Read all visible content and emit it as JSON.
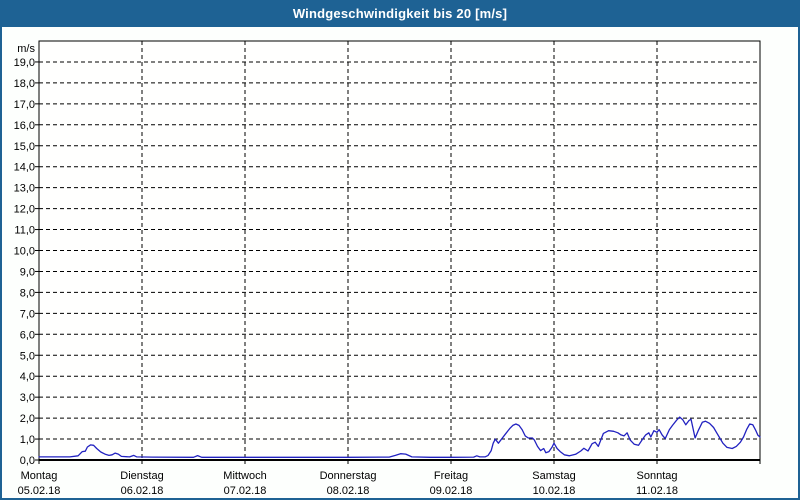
{
  "window": {
    "title": "Windgeschwindigkeit bis 20 [m/s]"
  },
  "colors": {
    "titlebar": "#1e6294",
    "window_border": "#1e6294",
    "background": "#fdfffd",
    "plot_background": "#fffffe",
    "grid": "#000000",
    "text": "#000000",
    "line": "#2222c0"
  },
  "chart_data": {
    "type": "line",
    "title": "Windgeschwindigkeit bis 20 [m/s]",
    "ylabel": "m/s",
    "xlabel": "",
    "ylim": [
      0,
      20
    ],
    "y_tick_step": 1,
    "grid": "dashed",
    "legend": "none",
    "y_tick_labels": [
      "0,0",
      "1,0",
      "2,0",
      "3,0",
      "4,0",
      "5,0",
      "6,0",
      "7,0",
      "8,0",
      "9,0",
      "10,0",
      "11,0",
      "12,0",
      "13,0",
      "14,0",
      "15,0",
      "16,0",
      "17,0",
      "18,0",
      "19,0"
    ],
    "x_categories": [
      {
        "day": "Montag",
        "date": "05.02.18"
      },
      {
        "day": "Dienstag",
        "date": "06.02.18"
      },
      {
        "day": "Mittwoch",
        "date": "07.02.18"
      },
      {
        "day": "Donnerstag",
        "date": "08.02.18"
      },
      {
        "day": "Freitag",
        "date": "09.02.18"
      },
      {
        "day": "Samstag",
        "date": "10.02.18"
      },
      {
        "day": "Sonntag",
        "date": "11.02.18"
      }
    ],
    "series": [
      {
        "name": "Windgeschwindigkeit",
        "unit": "m/s",
        "color": "#2222c0",
        "points": [
          [
            0.0,
            0.15
          ],
          [
            0.3,
            0.15
          ],
          [
            0.38,
            0.2
          ],
          [
            0.42,
            0.4
          ],
          [
            0.45,
            0.42
          ],
          [
            0.47,
            0.62
          ],
          [
            0.5,
            0.72
          ],
          [
            0.53,
            0.7
          ],
          [
            0.56,
            0.55
          ],
          [
            0.6,
            0.38
          ],
          [
            0.64,
            0.28
          ],
          [
            0.68,
            0.22
          ],
          [
            0.71,
            0.25
          ],
          [
            0.74,
            0.33
          ],
          [
            0.77,
            0.28
          ],
          [
            0.8,
            0.17
          ],
          [
            0.88,
            0.15
          ],
          [
            0.92,
            0.22
          ],
          [
            0.95,
            0.15
          ],
          [
            1.1,
            0.14
          ],
          [
            1.5,
            0.13
          ],
          [
            1.54,
            0.21
          ],
          [
            1.58,
            0.13
          ],
          [
            2.0,
            0.13
          ],
          [
            2.5,
            0.13
          ],
          [
            3.0,
            0.13
          ],
          [
            3.4,
            0.14
          ],
          [
            3.46,
            0.22
          ],
          [
            3.51,
            0.3
          ],
          [
            3.56,
            0.28
          ],
          [
            3.62,
            0.15
          ],
          [
            3.8,
            0.13
          ],
          [
            4.0,
            0.13
          ],
          [
            4.22,
            0.14
          ],
          [
            4.25,
            0.2
          ],
          [
            4.28,
            0.15
          ],
          [
            4.33,
            0.15
          ],
          [
            4.36,
            0.22
          ],
          [
            4.39,
            0.45
          ],
          [
            4.41,
            0.8
          ],
          [
            4.43,
            1.0
          ],
          [
            4.46,
            0.8
          ],
          [
            4.49,
            1.0
          ],
          [
            4.53,
            1.25
          ],
          [
            4.57,
            1.5
          ],
          [
            4.6,
            1.65
          ],
          [
            4.63,
            1.72
          ],
          [
            4.66,
            1.65
          ],
          [
            4.69,
            1.45
          ],
          [
            4.72,
            1.15
          ],
          [
            4.75,
            1.05
          ],
          [
            4.79,
            1.05
          ],
          [
            4.81,
            0.95
          ],
          [
            4.84,
            0.65
          ],
          [
            4.87,
            0.45
          ],
          [
            4.9,
            0.55
          ],
          [
            4.92,
            0.35
          ],
          [
            4.95,
            0.4
          ],
          [
            4.98,
            0.6
          ],
          [
            5.0,
            0.8
          ],
          [
            5.03,
            0.55
          ],
          [
            5.06,
            0.4
          ],
          [
            5.1,
            0.25
          ],
          [
            5.15,
            0.2
          ],
          [
            5.21,
            0.27
          ],
          [
            5.26,
            0.43
          ],
          [
            5.29,
            0.56
          ],
          [
            5.33,
            0.43
          ],
          [
            5.37,
            0.78
          ],
          [
            5.4,
            0.85
          ],
          [
            5.43,
            0.65
          ],
          [
            5.48,
            1.27
          ],
          [
            5.53,
            1.4
          ],
          [
            5.58,
            1.37
          ],
          [
            5.62,
            1.3
          ],
          [
            5.65,
            1.2
          ],
          [
            5.68,
            1.15
          ],
          [
            5.71,
            1.3
          ],
          [
            5.74,
            0.95
          ],
          [
            5.78,
            0.75
          ],
          [
            5.82,
            0.7
          ],
          [
            5.86,
            1.0
          ],
          [
            5.89,
            1.2
          ],
          [
            5.92,
            1.3
          ],
          [
            5.94,
            1.1
          ],
          [
            5.97,
            1.4
          ],
          [
            6.0,
            1.32
          ],
          [
            6.02,
            1.45
          ],
          [
            6.05,
            1.2
          ],
          [
            6.08,
            1.02
          ],
          [
            6.12,
            1.45
          ],
          [
            6.15,
            1.65
          ],
          [
            6.19,
            1.9
          ],
          [
            6.22,
            2.05
          ],
          [
            6.25,
            1.92
          ],
          [
            6.28,
            1.68
          ],
          [
            6.31,
            1.88
          ],
          [
            6.33,
            1.95
          ],
          [
            6.37,
            1.05
          ],
          [
            6.4,
            1.4
          ],
          [
            6.44,
            1.8
          ],
          [
            6.47,
            1.85
          ],
          [
            6.51,
            1.75
          ],
          [
            6.55,
            1.55
          ],
          [
            6.58,
            1.3
          ],
          [
            6.61,
            1.05
          ],
          [
            6.64,
            0.8
          ],
          [
            6.68,
            0.6
          ],
          [
            6.73,
            0.55
          ],
          [
            6.77,
            0.65
          ],
          [
            6.81,
            0.85
          ],
          [
            6.84,
            1.1
          ],
          [
            6.87,
            1.45
          ],
          [
            6.9,
            1.72
          ],
          [
            6.93,
            1.68
          ],
          [
            6.96,
            1.4
          ],
          [
            6.98,
            1.18
          ],
          [
            7.0,
            1.1
          ]
        ]
      }
    ]
  }
}
